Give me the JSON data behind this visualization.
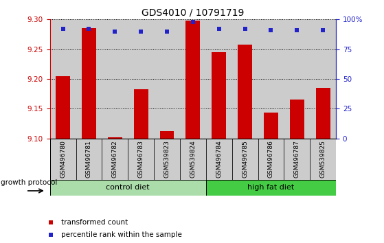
{
  "title": "GDS4010 / 10791719",
  "samples": [
    "GSM496780",
    "GSM496781",
    "GSM496782",
    "GSM496783",
    "GSM539823",
    "GSM539824",
    "GSM496784",
    "GSM496785",
    "GSM496786",
    "GSM496787",
    "GSM539825"
  ],
  "red_values": [
    9.205,
    9.285,
    9.102,
    9.183,
    9.113,
    9.298,
    9.245,
    9.258,
    9.143,
    9.165,
    9.185
  ],
  "blue_values": [
    92,
    92,
    90,
    90,
    90,
    98,
    92,
    92,
    91,
    91,
    91
  ],
  "ylim_left": [
    9.1,
    9.3
  ],
  "ylim_right": [
    0,
    100
  ],
  "yticks_left": [
    9.1,
    9.15,
    9.2,
    9.25,
    9.3
  ],
  "yticks_right": [
    0,
    25,
    50,
    75,
    100
  ],
  "groups": [
    {
      "label": "control diet",
      "count": 6,
      "color": "#aaddaa"
    },
    {
      "label": "high fat diet",
      "count": 5,
      "color": "#44cc44"
    }
  ],
  "group_label": "growth protocol",
  "bar_color": "#CC0000",
  "dot_color": "#2222CC",
  "col_bg_color": "#CCCCCC",
  "plot_bg": "#FFFFFF",
  "legend_items": [
    {
      "color": "#CC0000",
      "label": "transformed count"
    },
    {
      "color": "#2222CC",
      "label": "percentile rank within the sample"
    }
  ],
  "left_axis_color": "#CC0000",
  "right_axis_color": "#2222CC"
}
